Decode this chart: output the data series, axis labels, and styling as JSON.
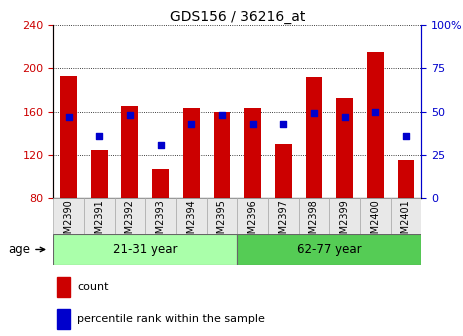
{
  "title": "GDS156 / 36216_at",
  "samples": [
    "GSM2390",
    "GSM2391",
    "GSM2392",
    "GSM2393",
    "GSM2394",
    "GSM2395",
    "GSM2396",
    "GSM2397",
    "GSM2398",
    "GSM2399",
    "GSM2400",
    "GSM2401"
  ],
  "count_values": [
    193,
    125,
    165,
    107,
    163,
    160,
    163,
    130,
    192,
    173,
    215,
    115
  ],
  "percentile_values": [
    47,
    36,
    48,
    31,
    43,
    48,
    43,
    43,
    49,
    47,
    50,
    36
  ],
  "ylim_left": [
    80,
    240
  ],
  "ylim_right": [
    0,
    100
  ],
  "yticks_left": [
    80,
    120,
    160,
    200,
    240
  ],
  "yticks_right": [
    0,
    25,
    50,
    75,
    100
  ],
  "group1_label": "21-31 year",
  "group2_label": "62-77 year",
  "group1_indices": [
    0,
    1,
    2,
    3,
    4,
    5
  ],
  "group2_indices": [
    6,
    7,
    8,
    9,
    10,
    11
  ],
  "bar_color": "#cc0000",
  "dot_color": "#0000cc",
  "bar_bottom": 80,
  "bar_width": 0.55,
  "background_color": "#ffffff",
  "group_bg_color_1": "#aaffaa",
  "group_bg_color_2": "#55cc55",
  "legend_count_label": "count",
  "legend_percentile_label": "percentile rank within the sample",
  "left_axis_color": "#cc0000",
  "right_axis_color": "#0000cc",
  "xlabel_age": "age"
}
